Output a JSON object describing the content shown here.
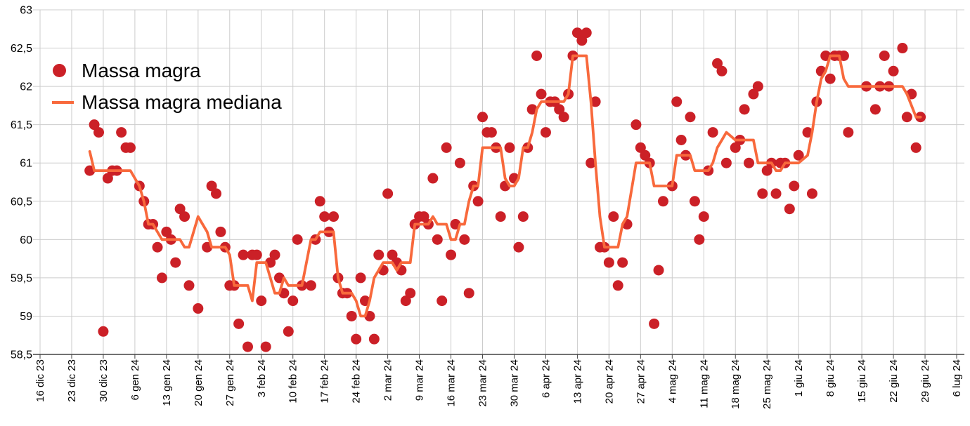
{
  "chart_data": {
    "type": "scatter",
    "title": "",
    "background": "#ffffff",
    "grid": true,
    "grid_color": "#cccccc",
    "axis_color": "#444444",
    "label_color": "#000000",
    "legend_position": "top-left-inside",
    "x_axis": {
      "x_encoding": "days_from_first_tick",
      "days_per_tick": 7,
      "total_days": 203,
      "tick_labels": [
        "16 dic 23",
        "23 dic 23",
        "30 dic 23",
        "6 gen 24",
        "13 gen 24",
        "20 gen 24",
        "27 gen 24",
        "3 feb 24",
        "10 feb 24",
        "17 feb 24",
        "24 feb 24",
        "2 mar 24",
        "9 mar 24",
        "16 mar 24",
        "23 mar 24",
        "30 mar 24",
        "6 apr 24",
        "13 apr 24",
        "20 apr 24",
        "27 apr 24",
        "4 mag 24",
        "11 mag 24",
        "18 mag 24",
        "25 mag 24",
        "1 giu 24",
        "8 giu 24",
        "15 giu 24",
        "22 giu 24",
        "29 giu 24",
        "6 lug 24"
      ]
    },
    "y_axis": {
      "min": 58.5,
      "max": 63,
      "step": 0.5,
      "tick_labels": [
        "63",
        "62,5",
        "62",
        "61,5",
        "61",
        "60,5",
        "60",
        "59,5",
        "59",
        "58,5"
      ]
    },
    "series": [
      {
        "name": "Massa magra",
        "type": "scatter",
        "color": "#cb2027",
        "marker_radius": 7.5,
        "points": [
          [
            11,
            60.9
          ],
          [
            12,
            61.5
          ],
          [
            13,
            61.4
          ],
          [
            14,
            58.8
          ],
          [
            15,
            60.8
          ],
          [
            16,
            60.9
          ],
          [
            17,
            60.9
          ],
          [
            18,
            61.4
          ],
          [
            19,
            61.2
          ],
          [
            20,
            61.2
          ],
          [
            22,
            60.7
          ],
          [
            23,
            60.5
          ],
          [
            24,
            60.2
          ],
          [
            25,
            60.2
          ],
          [
            26,
            59.9
          ],
          [
            27,
            59.5
          ],
          [
            28,
            60.1
          ],
          [
            29,
            60.0
          ],
          [
            30,
            59.7
          ],
          [
            31,
            60.4
          ],
          [
            32,
            60.3
          ],
          [
            33,
            59.4
          ],
          [
            35,
            59.1
          ],
          [
            37,
            59.9
          ],
          [
            38,
            60.7
          ],
          [
            39,
            60.6
          ],
          [
            40,
            60.1
          ],
          [
            41,
            59.9
          ],
          [
            42,
            59.4
          ],
          [
            43,
            59.4
          ],
          [
            44,
            58.9
          ],
          [
            45,
            59.8
          ],
          [
            46,
            58.6
          ],
          [
            47,
            59.8
          ],
          [
            48,
            59.8
          ],
          [
            49,
            59.2
          ],
          [
            50,
            58.6
          ],
          [
            51,
            59.7
          ],
          [
            52,
            59.8
          ],
          [
            53,
            59.5
          ],
          [
            54,
            59.3
          ],
          [
            55,
            58.8
          ],
          [
            56,
            59.2
          ],
          [
            57,
            60.0
          ],
          [
            58,
            59.4
          ],
          [
            60,
            59.4
          ],
          [
            61,
            60.0
          ],
          [
            62,
            60.5
          ],
          [
            63,
            60.3
          ],
          [
            64,
            60.1
          ],
          [
            65,
            60.3
          ],
          [
            66,
            59.5
          ],
          [
            67,
            59.3
          ],
          [
            68,
            59.3
          ],
          [
            69,
            59.0
          ],
          [
            70,
            58.7
          ],
          [
            71,
            59.5
          ],
          [
            72,
            59.2
          ],
          [
            73,
            59.0
          ],
          [
            74,
            58.7
          ],
          [
            75,
            59.8
          ],
          [
            76,
            59.6
          ],
          [
            77,
            60.6
          ],
          [
            78,
            59.8
          ],
          [
            79,
            59.7
          ],
          [
            80,
            59.6
          ],
          [
            81,
            59.2
          ],
          [
            82,
            59.3
          ],
          [
            83,
            60.2
          ],
          [
            84,
            60.3
          ],
          [
            85,
            60.3
          ],
          [
            86,
            60.2
          ],
          [
            87,
            60.8
          ],
          [
            88,
            60.0
          ],
          [
            89,
            59.2
          ],
          [
            90,
            61.2
          ],
          [
            91,
            59.8
          ],
          [
            92,
            60.2
          ],
          [
            93,
            61.0
          ],
          [
            94,
            60.0
          ],
          [
            95,
            59.3
          ],
          [
            96,
            60.7
          ],
          [
            97,
            60.5
          ],
          [
            98,
            61.6
          ],
          [
            99,
            61.4
          ],
          [
            100,
            61.4
          ],
          [
            101,
            61.2
          ],
          [
            102,
            60.3
          ],
          [
            103,
            60.7
          ],
          [
            104,
            61.2
          ],
          [
            105,
            60.8
          ],
          [
            106,
            59.9
          ],
          [
            107,
            60.3
          ],
          [
            108,
            61.2
          ],
          [
            109,
            61.7
          ],
          [
            110,
            62.4
          ],
          [
            111,
            61.9
          ],
          [
            112,
            61.4
          ],
          [
            113,
            61.8
          ],
          [
            114,
            61.8
          ],
          [
            115,
            61.7
          ],
          [
            116,
            61.6
          ],
          [
            117,
            61.9
          ],
          [
            118,
            62.4
          ],
          [
            119,
            62.7
          ],
          [
            120,
            62.6
          ],
          [
            121,
            62.7
          ],
          [
            122,
            61.0
          ],
          [
            123,
            61.8
          ],
          [
            124,
            59.9
          ],
          [
            125,
            59.9
          ],
          [
            126,
            59.7
          ],
          [
            127,
            60.3
          ],
          [
            128,
            59.4
          ],
          [
            129,
            59.7
          ],
          [
            130,
            60.2
          ],
          [
            132,
            61.5
          ],
          [
            133,
            61.2
          ],
          [
            134,
            61.1
          ],
          [
            135,
            61.0
          ],
          [
            136,
            58.9
          ],
          [
            137,
            59.6
          ],
          [
            138,
            60.5
          ],
          [
            140,
            60.7
          ],
          [
            141,
            61.8
          ],
          [
            142,
            61.3
          ],
          [
            143,
            61.1
          ],
          [
            144,
            61.6
          ],
          [
            145,
            60.5
          ],
          [
            146,
            60.0
          ],
          [
            147,
            60.3
          ],
          [
            148,
            60.9
          ],
          [
            149,
            61.4
          ],
          [
            150,
            62.3
          ],
          [
            151,
            62.2
          ],
          [
            152,
            61.0
          ],
          [
            154,
            61.2
          ],
          [
            155,
            61.3
          ],
          [
            156,
            61.7
          ],
          [
            157,
            61.0
          ],
          [
            158,
            61.9
          ],
          [
            159,
            62.0
          ],
          [
            160,
            60.6
          ],
          [
            161,
            60.9
          ],
          [
            162,
            61.0
          ],
          [
            163,
            60.6
          ],
          [
            164,
            61.0
          ],
          [
            165,
            61.0
          ],
          [
            166,
            60.4
          ],
          [
            167,
            60.7
          ],
          [
            168,
            61.1
          ],
          [
            170,
            61.4
          ],
          [
            171,
            60.6
          ],
          [
            172,
            61.8
          ],
          [
            173,
            62.2
          ],
          [
            174,
            62.4
          ],
          [
            175,
            62.1
          ],
          [
            176,
            62.4
          ],
          [
            177,
            62.4
          ],
          [
            178,
            62.4
          ],
          [
            179,
            61.4
          ],
          [
            183,
            62.0
          ],
          [
            185,
            61.7
          ],
          [
            186,
            62.0
          ],
          [
            187,
            62.4
          ],
          [
            188,
            62.0
          ],
          [
            189,
            62.2
          ],
          [
            191,
            62.5
          ],
          [
            192,
            61.6
          ],
          [
            193,
            61.9
          ],
          [
            194,
            61.2
          ],
          [
            195,
            61.6
          ]
        ]
      },
      {
        "name": "Massa magra mediana",
        "type": "line",
        "color": "#f8693c",
        "line_width": 3.8,
        "derived_from": "Massa magra",
        "method": "rolling median, 7 points centered"
      }
    ]
  }
}
